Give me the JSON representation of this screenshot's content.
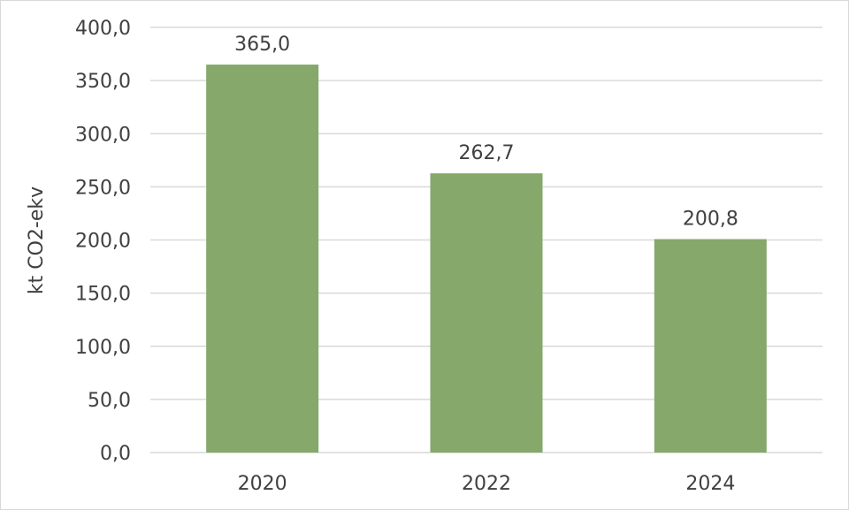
{
  "chart_data": {
    "type": "bar",
    "categories": [
      "2020",
      "2022",
      "2024"
    ],
    "values": [
      365.0,
      262.7,
      200.8
    ],
    "data_labels": [
      "365,0",
      "262,7",
      "200,8"
    ],
    "title": "",
    "xlabel": "",
    "ylabel": "kt CO2-ekv",
    "ylim": [
      0,
      400
    ],
    "y_ticks": [
      0,
      50,
      100,
      150,
      200,
      250,
      300,
      350,
      400
    ],
    "y_tick_labels": [
      "0,0",
      "50,0",
      "100,0",
      "150,0",
      "200,0",
      "250,0",
      "300,0",
      "350,0",
      "400,0"
    ],
    "grid": true,
    "legend": "none",
    "bar_color": "#86a86b",
    "grid_color": "#d9d9d9",
    "text_color": "#404040"
  }
}
